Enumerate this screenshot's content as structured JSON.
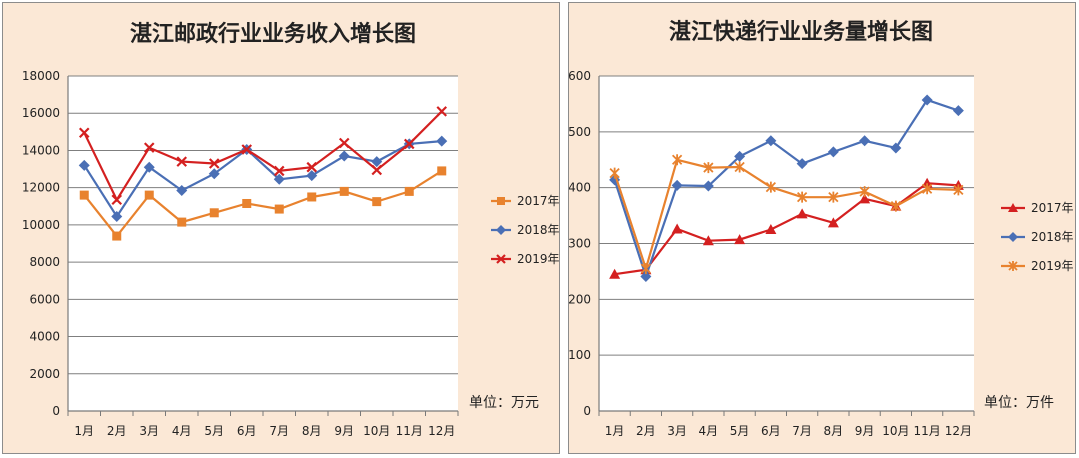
{
  "chart_data": [
    {
      "type": "line",
      "title": "湛江邮政行业业务收入增长图",
      "categories": [
        "1月",
        "2月",
        "3月",
        "4月",
        "5月",
        "6月",
        "7月",
        "8月",
        "9月",
        "10月",
        "11月",
        "12月"
      ],
      "ylim": [
        0,
        18000
      ],
      "yticks": [
        0,
        2000,
        4000,
        6000,
        8000,
        10000,
        12000,
        14000,
        16000,
        18000
      ],
      "unit_label": "单位：万元",
      "series": [
        {
          "name": "2017年",
          "color": "#e8822e",
          "marker": "square",
          "values": [
            11600,
            9400,
            11600,
            10150,
            10650,
            11150,
            10850,
            11500,
            11800,
            11250,
            11800,
            12900
          ]
        },
        {
          "name": "2018年",
          "color": "#4a6fb5",
          "marker": "diamond",
          "values": [
            13200,
            10450,
            13100,
            11850,
            12750,
            14050,
            12450,
            12650,
            13700,
            13400,
            14350,
            14500
          ]
        },
        {
          "name": "2019年",
          "color": "#d42020",
          "marker": "x",
          "values": [
            14950,
            11350,
            14150,
            13400,
            13300,
            14050,
            12900,
            13100,
            14400,
            12950,
            14350,
            16100
          ]
        }
      ]
    },
    {
      "type": "line",
      "title": "湛江快递行业业务量增长图",
      "categories": [
        "1月",
        "2月",
        "3月",
        "4月",
        "5月",
        "6月",
        "7月",
        "8月",
        "9月",
        "10月",
        "11月",
        "12月"
      ],
      "ylim": [
        0,
        600
      ],
      "yticks": [
        0,
        100,
        200,
        300,
        400,
        500,
        600
      ],
      "unit_label": "单位：万件",
      "series": [
        {
          "name": "2017年",
          "color": "#d42020",
          "marker": "triangle",
          "values": [
            245,
            253,
            326,
            305,
            307,
            325,
            353,
            337,
            380,
            367,
            408,
            404
          ]
        },
        {
          "name": "2018年",
          "color": "#4a6fb5",
          "marker": "diamond",
          "values": [
            414,
            241,
            404,
            403,
            456,
            484,
            443,
            464,
            484,
            471,
            557,
            538
          ]
        },
        {
          "name": "2019年",
          "color": "#e8822e",
          "marker": "star",
          "values": [
            426,
            255,
            450,
            436,
            437,
            401,
            383,
            383,
            393,
            367,
            398,
            396
          ]
        }
      ]
    }
  ]
}
